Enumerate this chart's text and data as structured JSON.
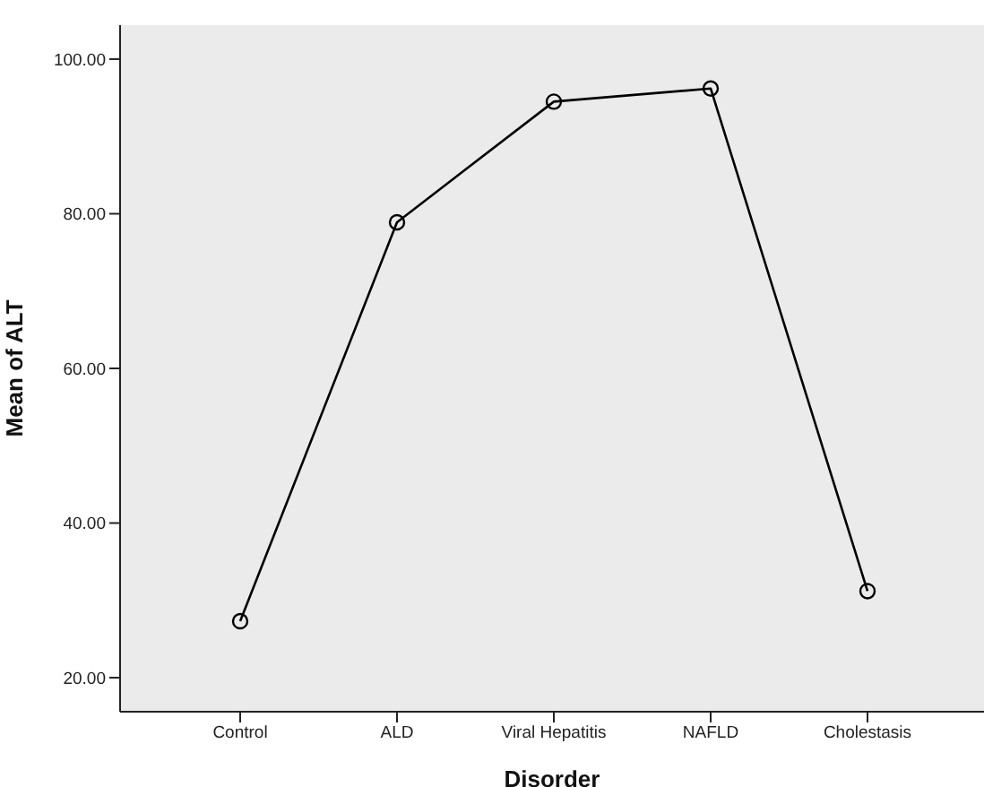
{
  "chart_data": {
    "type": "line",
    "xlabel": "Disorder",
    "ylabel": "Mean of ALT",
    "categories": [
      "Control",
      "ALD",
      "Viral Hepatitis",
      "NAFLD",
      "Cholestasis"
    ],
    "series": [
      {
        "color": "#000000",
        "values": [
          27.3,
          78.9,
          94.5,
          96.2,
          31.2
        ]
      }
    ],
    "ylim": [
      15.6,
      104.4
    ],
    "yticks": [
      {
        "value": 20,
        "label": "20.00"
      },
      {
        "value": 40,
        "label": "40.00"
      },
      {
        "value": 60,
        "label": "60.00"
      },
      {
        "value": 80,
        "label": "80.00"
      },
      {
        "value": 100,
        "label": "100.00"
      }
    ],
    "grid": false,
    "legend": false,
    "marker": "circle",
    "line_style": "solid"
  }
}
